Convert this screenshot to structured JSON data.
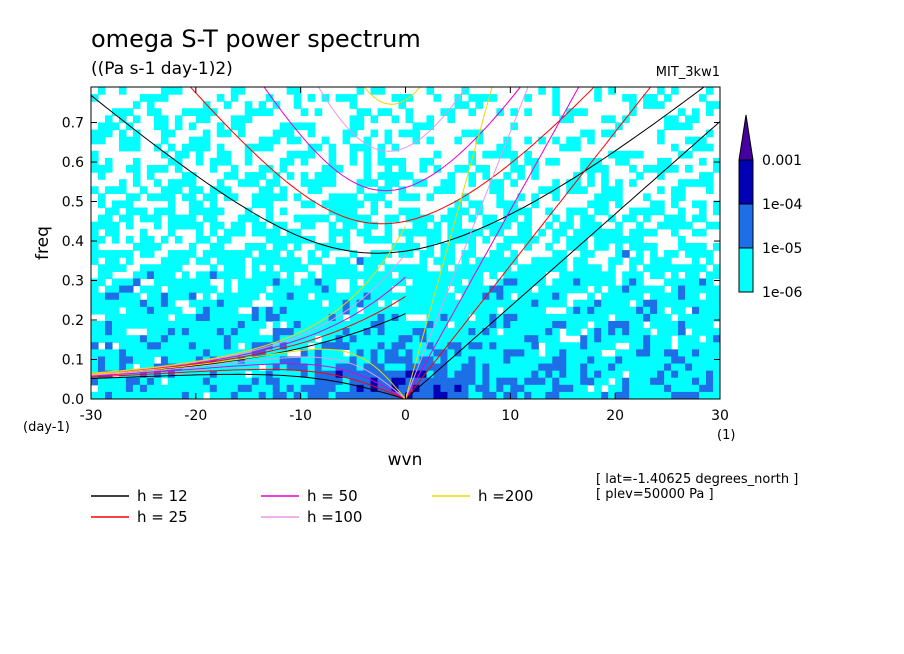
{
  "chart_data": {
    "type": "heatmap",
    "title": "omega S-T power spectrum",
    "subtitle": "((Pa s-1 day-1)2)",
    "model": "MIT_3kw1",
    "xlabel": "wvn",
    "ylabel": "freq",
    "x_unit": "(1)",
    "y_unit": "(day-1)",
    "xlim": [
      -30,
      30
    ],
    "ylim": [
      0,
      0.79
    ],
    "xticks": [
      "-30",
      "-20",
      "-10",
      "0",
      "10",
      "20",
      "30"
    ],
    "yticks": [
      "0.0",
      "0.1",
      "0.2",
      "0.3",
      "0.4",
      "0.5",
      "0.6",
      "0.7"
    ],
    "colorbar": {
      "levels": [
        "1e-06",
        "1e-05",
        "1e-04",
        "0.001"
      ],
      "colors": [
        "#ffffff",
        "#00ffff",
        "#1e6ee8",
        "#0000b4",
        "#4400a0"
      ]
    },
    "dispersion_curves": [
      {
        "name": "h = 12",
        "h": 12,
        "color": "#000000"
      },
      {
        "name": "h = 25",
        "h": 25,
        "color": "#ff0000"
      },
      {
        "name": "h = 50",
        "h": 50,
        "color": "#e600d0"
      },
      {
        "name": "h =100",
        "h": 100,
        "color": "#e898e8"
      },
      {
        "name": "h =200",
        "h": 200,
        "color": "#f0d800"
      }
    ],
    "info": [
      "[ lat=-1.40625 degrees_north ]",
      "[ plev=50000 Pa ]"
    ]
  }
}
